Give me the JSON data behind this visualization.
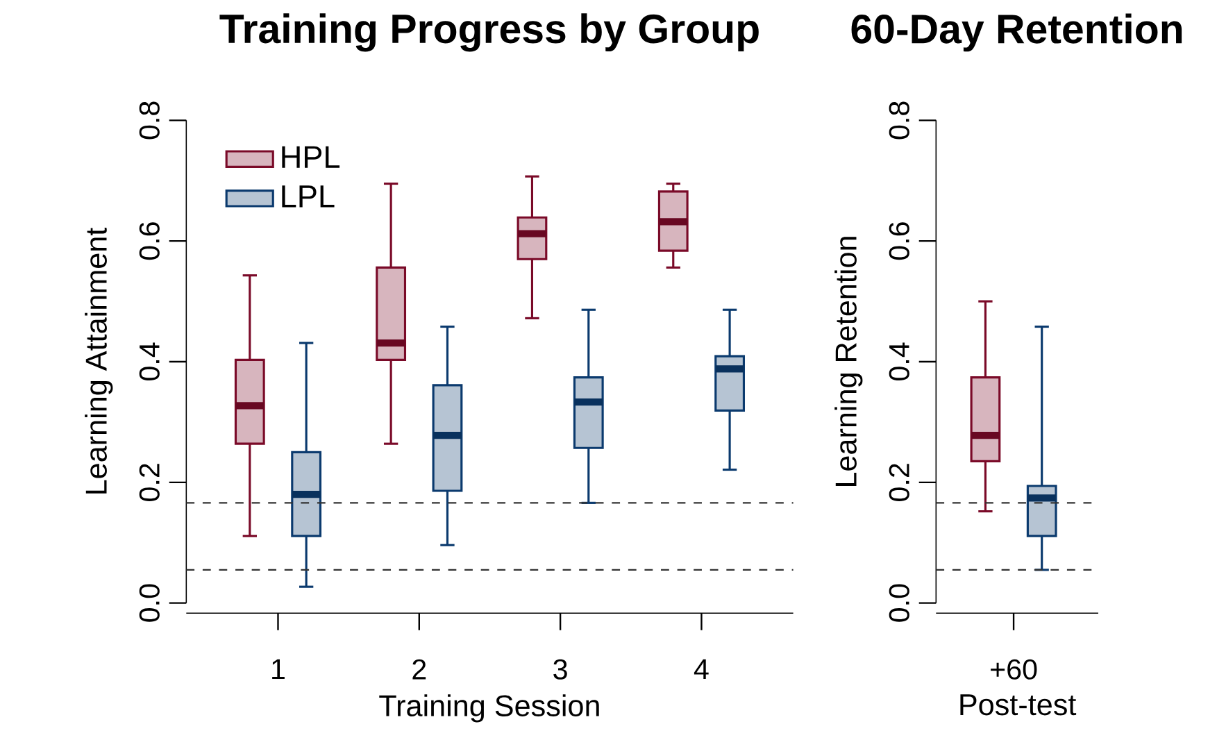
{
  "chart_data": [
    {
      "type": "box",
      "title": "Training Progress by Group",
      "xlabel": "Training Session",
      "ylabel": "Learning Attainment",
      "categories": [
        "1",
        "2",
        "3",
        "4"
      ],
      "series": [
        {
          "name": "HPL",
          "color": "#7a0a28",
          "boxes": [
            {
              "low": 0.111,
              "q1": 0.264,
              "median": 0.327,
              "q3": 0.403,
              "high": 0.543
            },
            {
              "low": 0.264,
              "q1": 0.403,
              "median": 0.431,
              "q3": 0.556,
              "high": 0.695
            },
            {
              "low": 0.472,
              "q1": 0.57,
              "median": 0.612,
              "q3": 0.639,
              "high": 0.707
            },
            {
              "low": 0.556,
              "q1": 0.584,
              "median": 0.632,
              "q3": 0.682,
              "high": 0.695
            }
          ]
        },
        {
          "name": "LPL",
          "color": "#0b3a6e",
          "boxes": [
            {
              "low": 0.027,
              "q1": 0.111,
              "median": 0.18,
              "q3": 0.25,
              "high": 0.431
            },
            {
              "low": 0.096,
              "q1": 0.186,
              "median": 0.278,
              "q3": 0.361,
              "high": 0.458
            },
            {
              "low": 0.166,
              "q1": 0.257,
              "median": 0.333,
              "q3": 0.374,
              "high": 0.486
            },
            {
              "low": 0.221,
              "q1": 0.319,
              "median": 0.388,
              "q3": 0.409,
              "high": 0.486
            }
          ]
        }
      ],
      "ylim": [
        0,
        0.8
      ],
      "yticks": [
        {
          "value": 0,
          "label": "0.0"
        },
        0.2,
        0.4,
        0.6,
        0.8
      ],
      "ref_lines": [
        {
          "axis": "y",
          "value": 0.166,
          "line_style": "dashed"
        },
        {
          "axis": "y",
          "value": 0.055,
          "line_style": "dashed"
        }
      ],
      "legend": "top left"
    },
    {
      "type": "box",
      "title": "60-Day Retention",
      "xlabel": "Post-test",
      "ylabel": "Learning Retention",
      "categories": [
        "+60"
      ],
      "series": [
        {
          "color": "#7a0a28",
          "boxes": [
            {
              "low": 0.152,
              "q1": 0.235,
              "median": 0.278,
              "q3": 0.374,
              "high": 0.5
            }
          ]
        },
        {
          "color": "#0b3a6e",
          "boxes": [
            {
              "low": 0.055,
              "q1": 0.111,
              "median": 0.174,
              "q3": 0.194,
              "high": 0.458
            }
          ]
        }
      ],
      "ylim": [
        0,
        0.8
      ],
      "yticks": [
        {
          "value": 0,
          "label": "0.0"
        },
        0.2,
        0.4,
        0.6,
        0.8
      ],
      "ref_lines": [
        {
          "axis": "y",
          "value": 0.166,
          "line_style": "dashed"
        },
        {
          "axis": "y",
          "value": 0.055,
          "line_style": "dashed"
        }
      ]
    }
  ]
}
